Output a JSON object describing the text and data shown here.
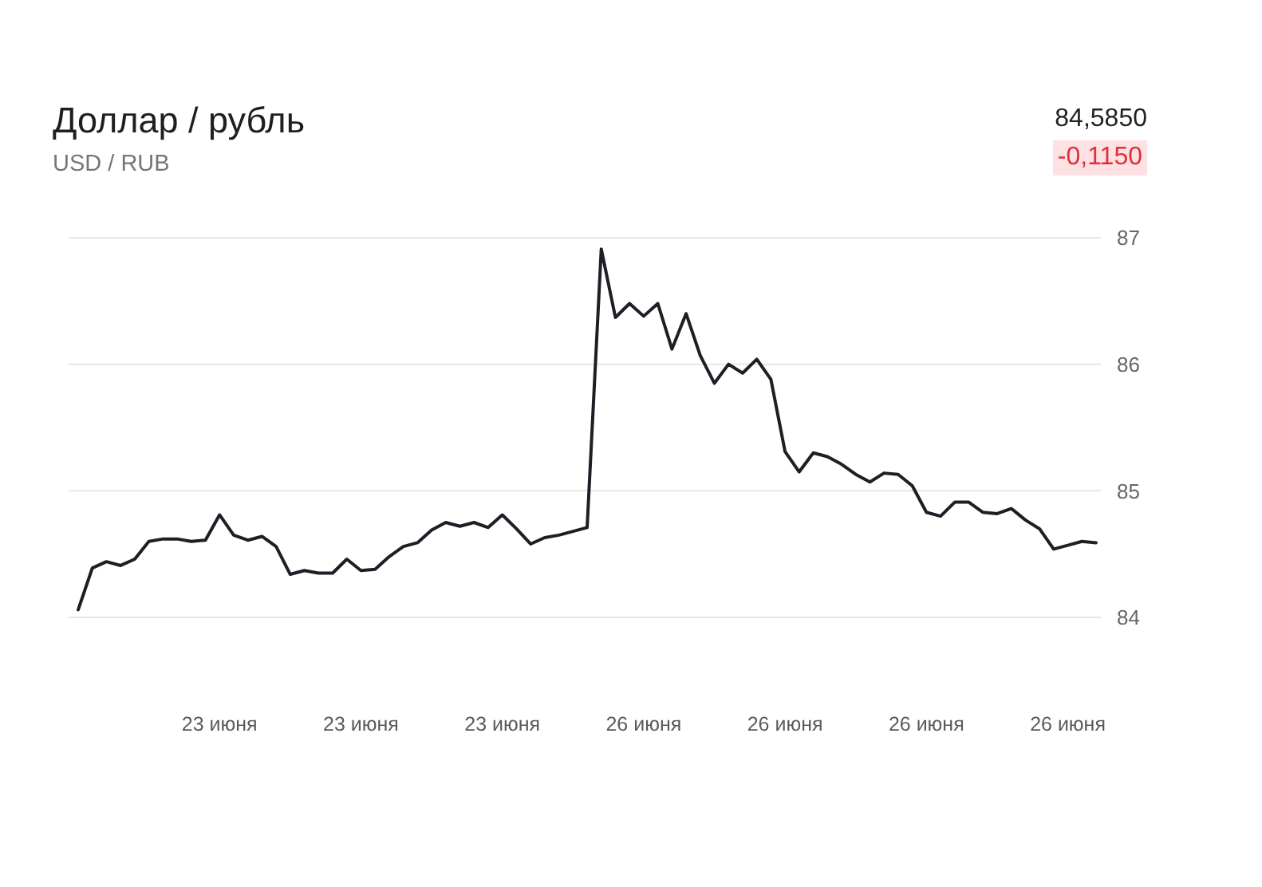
{
  "chart_data": {
    "type": "line",
    "title": "Доллар / рубль",
    "subtitle": "USD / RUB",
    "annotations": [
      "84,5850",
      "-0,1150"
    ],
    "categories": [
      null,
      null,
      null,
      null,
      null,
      null,
      null,
      null,
      null,
      null,
      "23 июня",
      null,
      null,
      null,
      null,
      null,
      null,
      null,
      null,
      null,
      "23 июня",
      null,
      null,
      null,
      null,
      null,
      null,
      null,
      null,
      null,
      "23 июня",
      null,
      null,
      null,
      null,
      null,
      null,
      null,
      null,
      null,
      "26 июня",
      null,
      null,
      null,
      null,
      null,
      null,
      null,
      null,
      null,
      "26 июня",
      null,
      null,
      null,
      null,
      null,
      null,
      null,
      null,
      null,
      "26 июня",
      null,
      null,
      null,
      null,
      null,
      null,
      null,
      null,
      null,
      "26 июня",
      null,
      null
    ],
    "values": [
      84.06,
      84.39,
      84.44,
      84.41,
      84.46,
      84.6,
      84.62,
      84.62,
      84.6,
      84.61,
      84.81,
      84.65,
      84.61,
      84.64,
      84.56,
      84.34,
      84.37,
      84.35,
      84.35,
      84.46,
      84.37,
      84.38,
      84.48,
      84.56,
      84.59,
      84.69,
      84.75,
      84.72,
      84.75,
      84.71,
      84.81,
      84.7,
      84.58,
      84.63,
      84.65,
      84.68,
      84.71,
      86.91,
      86.37,
      86.48,
      86.38,
      86.48,
      86.12,
      86.4,
      86.07,
      85.85,
      86.0,
      85.93,
      86.04,
      85.88,
      85.31,
      85.15,
      85.3,
      85.27,
      85.21,
      85.13,
      85.07,
      85.14,
      85.13,
      85.04,
      84.83,
      84.8,
      84.91,
      84.91,
      84.83,
      84.82,
      84.86,
      84.77,
      84.7,
      84.54,
      84.57,
      84.6,
      84.59
    ],
    "color": "#1e1f26",
    "ylim": [
      84,
      87
    ],
    "yticks": [
      84,
      85,
      86,
      87
    ],
    "grid": "y"
  }
}
